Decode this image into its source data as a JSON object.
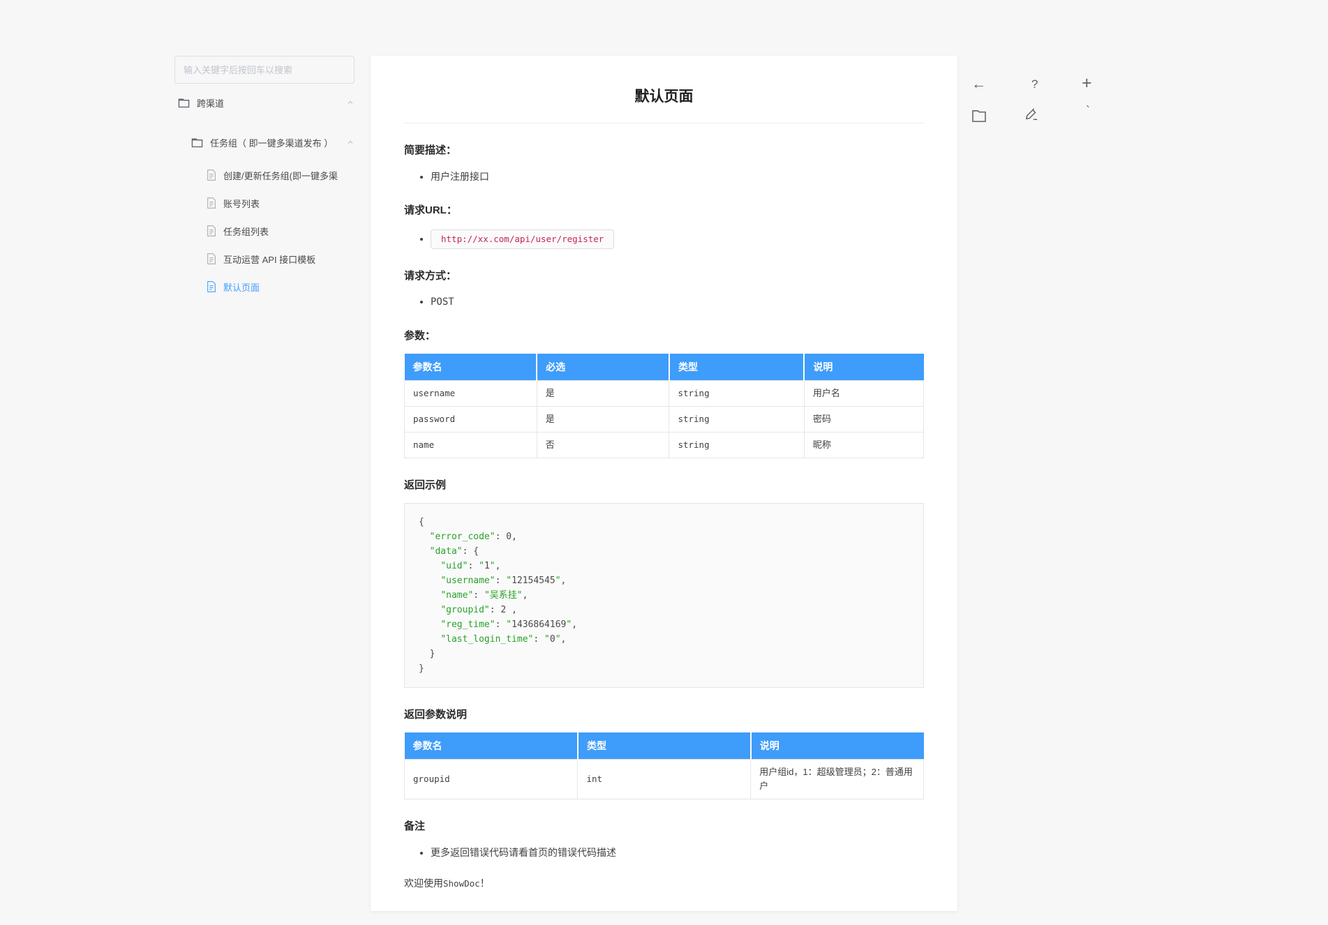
{
  "colors": {
    "accent_blue": "#3e9cfa",
    "link_blue": "#409eff",
    "code_red": "#c7254e",
    "code_green": "#2aa12a"
  },
  "sidebar": {
    "search_placeholder": "输入关键字后按回车以搜索",
    "folders": [
      {
        "label": "跨渠道"
      },
      {
        "label": "任务组（ 即一键多渠道发布 ）"
      }
    ],
    "pages": [
      {
        "label": "创建/更新任务组(即一键多渠"
      },
      {
        "label": "账号列表"
      },
      {
        "label": "任务组列表"
      },
      {
        "label": "互动运营 API 接口模板"
      },
      {
        "label": "默认页面"
      }
    ]
  },
  "toolbar": {
    "back_glyph": "←",
    "help_glyph": "?",
    "add_glyph": "+",
    "more_glyph": "`"
  },
  "doc": {
    "title": "默认页面",
    "brief_heading": "简要描述：",
    "brief_item": "用户注册接口",
    "url_heading": "请求URL：",
    "url_value": "http://xx.com/api/user/register",
    "method_heading": "请求方式：",
    "method_value": "POST",
    "params_heading": "参数：",
    "params_table": {
      "headers": [
        "参数名",
        "必选",
        "类型",
        "说明"
      ],
      "rows": [
        {
          "name": "username",
          "required": "是",
          "type": "string",
          "desc": "用户名"
        },
        {
          "name": "password",
          "required": "是",
          "type": "string",
          "desc": "密码"
        },
        {
          "name": "name",
          "required": "否",
          "type": "string",
          "desc": "昵称"
        }
      ]
    },
    "return_example_heading": "返回示例",
    "code_example": {
      "lines": [
        [
          {
            "c": "d",
            "t": "{"
          }
        ],
        [
          {
            "c": "d",
            "t": "  "
          },
          {
            "c": "k",
            "t": "\"error_code\""
          },
          {
            "c": "d",
            "t": ": 0,"
          }
        ],
        [
          {
            "c": "d",
            "t": "  "
          },
          {
            "c": "k",
            "t": "\"data\""
          },
          {
            "c": "d",
            "t": ": {"
          }
        ],
        [
          {
            "c": "d",
            "t": "    "
          },
          {
            "c": "k",
            "t": "\"uid\""
          },
          {
            "c": "d",
            "t": ": "
          },
          {
            "c": "k",
            "t": "\""
          },
          {
            "c": "d",
            "t": "1"
          },
          {
            "c": "k",
            "t": "\""
          },
          {
            "c": "d",
            "t": ","
          }
        ],
        [
          {
            "c": "d",
            "t": "    "
          },
          {
            "c": "k",
            "t": "\"username\""
          },
          {
            "c": "d",
            "t": ": "
          },
          {
            "c": "k",
            "t": "\""
          },
          {
            "c": "d",
            "t": "12154545"
          },
          {
            "c": "k",
            "t": "\""
          },
          {
            "c": "d",
            "t": ","
          }
        ],
        [
          {
            "c": "d",
            "t": "    "
          },
          {
            "c": "k",
            "t": "\"name\""
          },
          {
            "c": "d",
            "t": ": "
          },
          {
            "c": "k",
            "t": "\"吴系挂\""
          },
          {
            "c": "d",
            "t": ","
          }
        ],
        [
          {
            "c": "d",
            "t": "    "
          },
          {
            "c": "k",
            "t": "\"groupid\""
          },
          {
            "c": "d",
            "t": ": 2 ,"
          }
        ],
        [
          {
            "c": "d",
            "t": "    "
          },
          {
            "c": "k",
            "t": "\"reg_time\""
          },
          {
            "c": "d",
            "t": ": "
          },
          {
            "c": "k",
            "t": "\""
          },
          {
            "c": "d",
            "t": "1436864169"
          },
          {
            "c": "k",
            "t": "\""
          },
          {
            "c": "d",
            "t": ","
          }
        ],
        [
          {
            "c": "d",
            "t": "    "
          },
          {
            "c": "k",
            "t": "\"last_login_time\""
          },
          {
            "c": "d",
            "t": ": "
          },
          {
            "c": "k",
            "t": "\""
          },
          {
            "c": "d",
            "t": "0"
          },
          {
            "c": "k",
            "t": "\""
          },
          {
            "c": "d",
            "t": ","
          }
        ],
        [
          {
            "c": "d",
            "t": "  }"
          }
        ],
        [
          {
            "c": "d",
            "t": "}"
          }
        ]
      ]
    },
    "return_params_heading": "返回参数说明",
    "return_table": {
      "headers": [
        "参数名",
        "类型",
        "说明"
      ],
      "rows": [
        {
          "name": "groupid",
          "type": "int",
          "desc": "用户组id，1：超级管理员；2：普通用户"
        }
      ]
    },
    "remark_heading": "备注",
    "remark_item": "更多返回错误代码请看首页的错误代码描述",
    "footer_prefix": "欢迎使用",
    "footer_brand": "ShowDoc",
    "footer_suffix": "！"
  }
}
